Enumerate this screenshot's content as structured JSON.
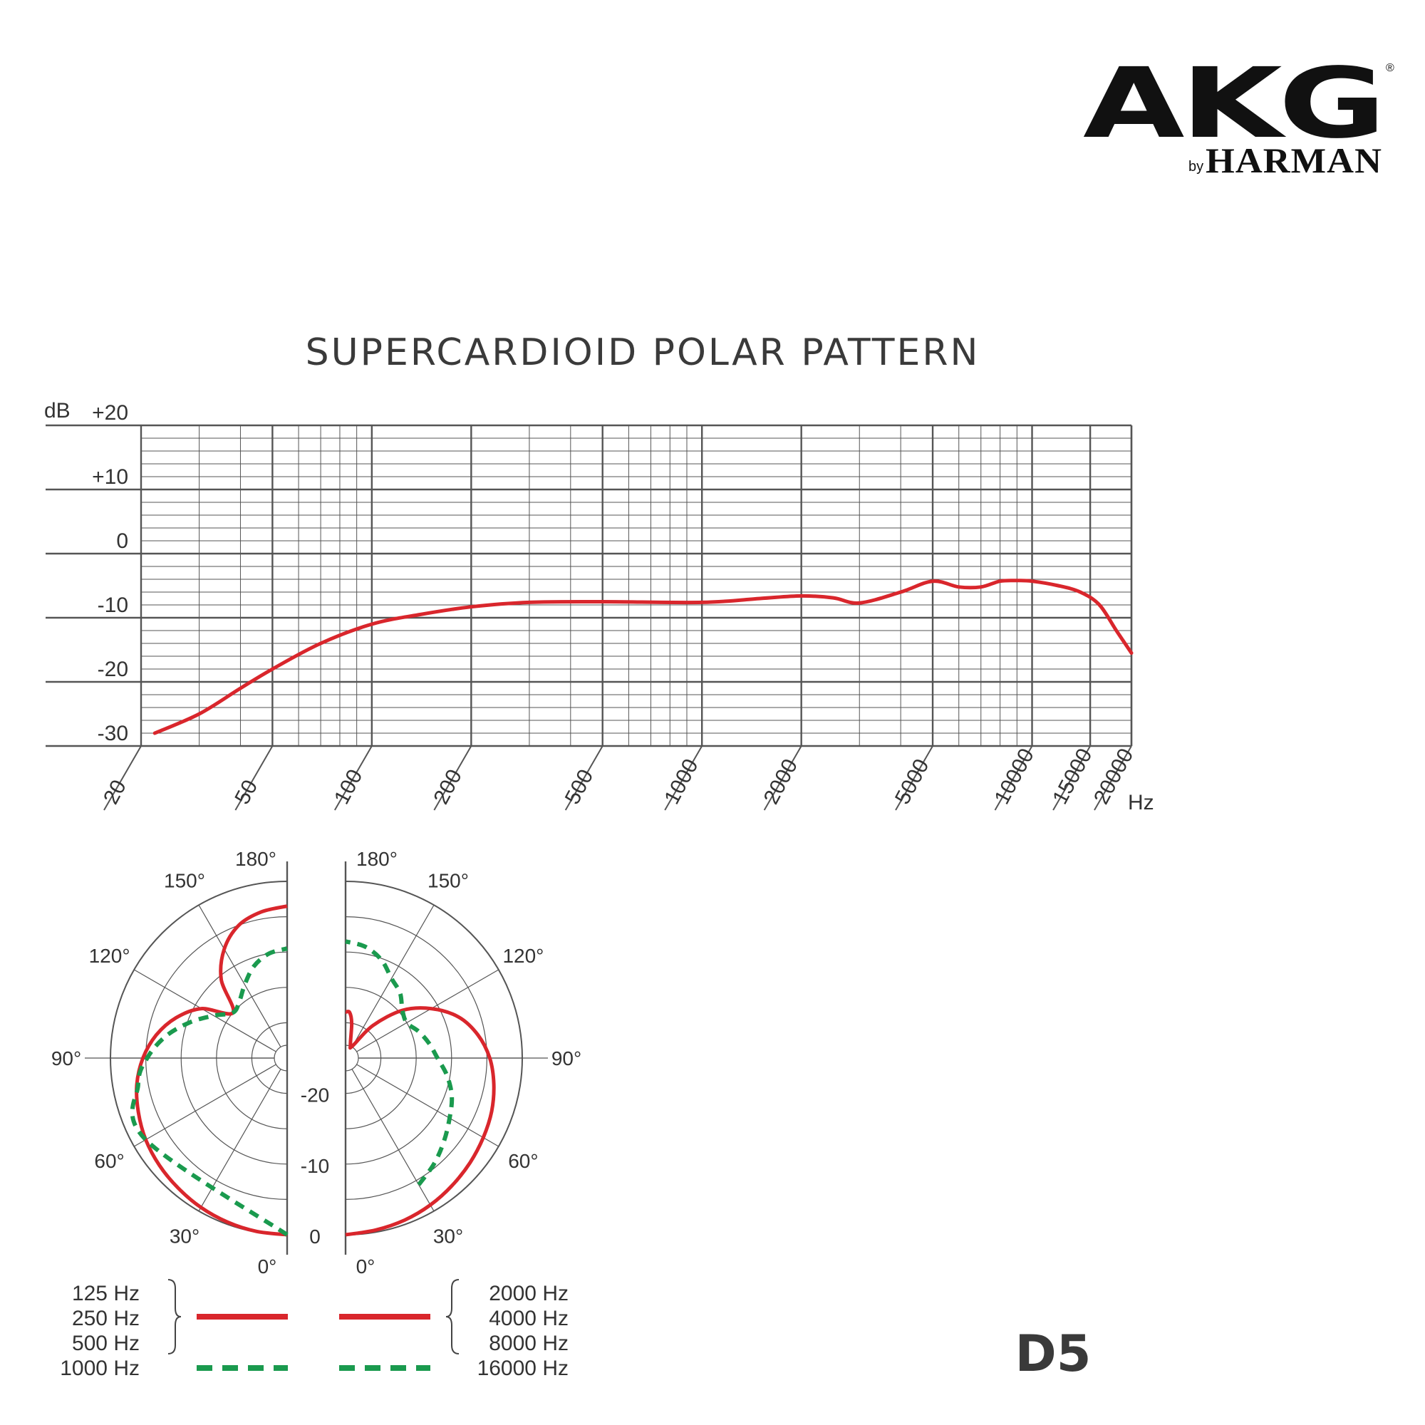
{
  "brand": {
    "logo": "AKG",
    "by": "by",
    "sub": "HARMAN",
    "reg": "®"
  },
  "title": "SUPERCARDIOID POLAR PATTERN",
  "model": "D5",
  "colors": {
    "response": "#d9262c",
    "dashed": "#1a9a4e",
    "grid": "#555555",
    "text": "#333333"
  },
  "chart_data": [
    {
      "type": "line",
      "title": "",
      "ylabel": "dB",
      "xlabel": "Hz",
      "x_scale": "log",
      "xlim": [
        20,
        20000
      ],
      "ylim": [
        -30,
        20
      ],
      "y_ticks": [
        "+20",
        "+10",
        "0",
        "-10",
        "-20",
        "-30"
      ],
      "x_ticks": [
        "20",
        "50",
        "100",
        "200",
        "500",
        "1000",
        "2000",
        "5000",
        "10000",
        "15000",
        "20000"
      ],
      "series": [
        {
          "x": [
            22,
            30,
            40,
            50,
            70,
            100,
            140,
            200,
            300,
            500,
            1000,
            1500,
            2000,
            2500,
            3000,
            4000,
            5000,
            6000,
            7000,
            8000,
            9000,
            10000,
            12000,
            14000,
            16000,
            18000,
            20000
          ],
          "y": [
            -28,
            -25,
            -21,
            -18,
            -14,
            -11,
            -9.5,
            -8.3,
            -7.6,
            -7.5,
            -7.6,
            -7,
            -6.6,
            -6.9,
            -7.7,
            -6,
            -4.3,
            -5.2,
            -5.2,
            -4.3,
            -4.2,
            -4.3,
            -5,
            -6,
            -8,
            -12,
            -15.5
          ]
        }
      ]
    },
    {
      "type": "polar",
      "r_ticks": [
        "0",
        "-10",
        "-20"
      ],
      "angle_labels": [
        "0°",
        "30°",
        "60°",
        "90°",
        "120°",
        "150°",
        "180°"
      ],
      "rlim": [
        -25,
        0
      ],
      "series": [
        {
          "name": "125 Hz 250 Hz 500 Hz",
          "side": "left",
          "style": "solid",
          "angles": [
            0,
            10,
            20,
            30,
            40,
            50,
            60,
            70,
            80,
            90,
            100,
            110,
            120,
            130,
            140,
            150,
            160,
            170,
            180
          ],
          "db": [
            0,
            -0.1,
            -0.3,
            -0.6,
            -1,
            -1.4,
            -1.9,
            -2.6,
            -3.4,
            -4.6,
            -6.2,
            -8.3,
            -11,
            -15,
            -10.5,
            -7.2,
            -5,
            -4,
            -3.5
          ]
        },
        {
          "name": "1000 Hz",
          "side": "left",
          "style": "dashed",
          "angles": [
            0,
            60,
            80,
            90,
            100,
            110,
            120,
            130,
            140,
            150,
            160,
            170,
            180
          ],
          "db": [
            0,
            -1.9,
            -3.6,
            -5.2,
            -7.5,
            -10.3,
            -13,
            -15,
            -14.5,
            -13,
            -11.2,
            -10,
            -9.5
          ]
        },
        {
          "name": "2000 Hz 4000 Hz 8000 Hz",
          "side": "right",
          "style": "solid",
          "angles": [
            0,
            10,
            20,
            30,
            40,
            50,
            60,
            70,
            80,
            90,
            100,
            110,
            120,
            130,
            140,
            150,
            160,
            170,
            175,
            180
          ],
          "db": [
            0,
            -0.3,
            -0.6,
            -1,
            -1.5,
            -2,
            -2.5,
            -3,
            -3.7,
            -4.6,
            -6,
            -8,
            -11,
            -14.5,
            -19,
            -23,
            -23,
            -20,
            -18.5,
            -18.5
          ]
        },
        {
          "name": "16000 Hz",
          "side": "right",
          "style": "dashed",
          "angles": [
            30,
            40,
            50,
            60,
            70,
            80,
            90,
            100,
            110,
            120,
            130,
            140,
            150,
            160,
            170,
            180
          ],
          "db": [
            -4.3,
            -5.5,
            -6.8,
            -8,
            -9,
            -10.4,
            -12,
            -13,
            -14,
            -15,
            -14.5,
            -13,
            -12,
            -10.2,
            -9,
            -8.5
          ]
        }
      ]
    }
  ],
  "legend": {
    "left_group": [
      "125 Hz",
      "250 Hz",
      "500 Hz"
    ],
    "left_dashed": "1000 Hz",
    "right_group": [
      "2000 Hz",
      "4000 Hz",
      "8000 Hz"
    ],
    "right_dashed": "16000 Hz"
  }
}
